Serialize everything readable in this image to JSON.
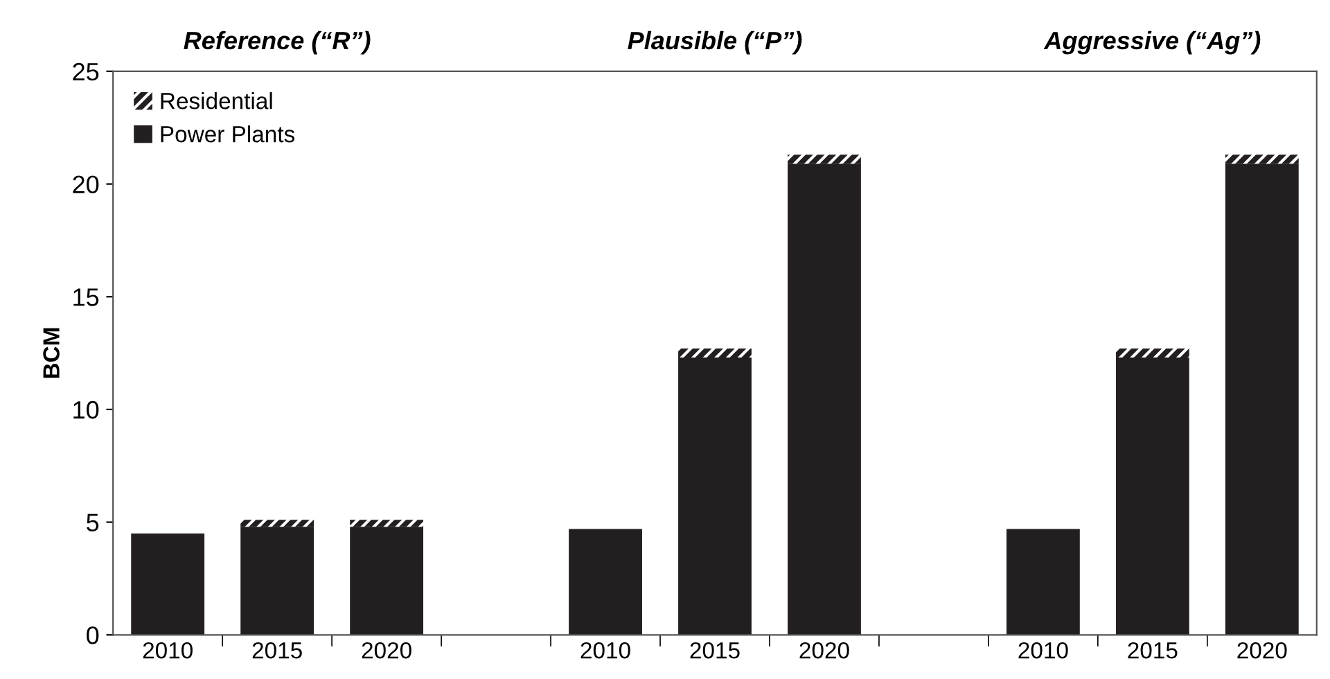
{
  "chart_data": {
    "type": "bar",
    "stacked": true,
    "ylabel": "BCM",
    "annotations": [
      "Reference (“R”)",
      "Plausible (“P”)",
      "Aggressive (“Ag”)"
    ],
    "categories": [
      "2010",
      "2015",
      "2020",
      null,
      "2010",
      "2015",
      "2020",
      null,
      "2010",
      "2015",
      "2020"
    ],
    "series": [
      {
        "name": "Power Plants",
        "color": "#231f20",
        "values": [
          4.5,
          4.8,
          4.8,
          null,
          4.7,
          12.3,
          20.9,
          null,
          4.7,
          12.3,
          20.9
        ]
      },
      {
        "name": "Residential",
        "color": "#231f20",
        "values": [
          0,
          0.3,
          0.3,
          null,
          0,
          0.4,
          0.4,
          null,
          0,
          0.4,
          0.4
        ]
      }
    ],
    "ylim": [
      0,
      25
    ],
    "yticks": [
      0,
      5,
      10,
      15,
      20,
      25
    ],
    "grid": false,
    "legend": "top left"
  }
}
